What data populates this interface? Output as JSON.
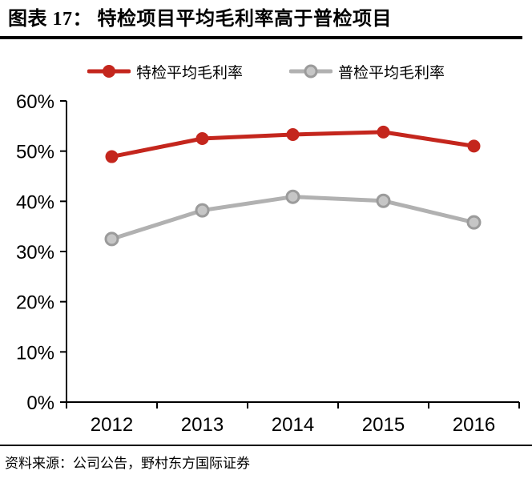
{
  "header": {
    "title": "图表 17：  特检项目平均毛利率高于普检项目"
  },
  "legend": {
    "items": [
      {
        "label": "特检平均毛利率",
        "line_color": "#c4261d",
        "marker_fill": "#c4261d",
        "marker_stroke": "#c4261d"
      },
      {
        "label": "普检平均毛利率",
        "line_color": "#b1b1b1",
        "marker_fill": "#c6c6c6",
        "marker_stroke": "#9b9b9b"
      }
    ]
  },
  "chart_data": {
    "type": "line",
    "title": "特检项目平均毛利率高于普检项目",
    "x": [
      "2012",
      "2013",
      "2014",
      "2015",
      "2016"
    ],
    "series": [
      {
        "name": "特检平均毛利率",
        "values": [
          48.9,
          52.5,
          53.3,
          53.8,
          51.0
        ],
        "color": "#c4261d",
        "marker": "filled",
        "marker_fill": "#c4261d",
        "marker_stroke": "#c4261d"
      },
      {
        "name": "普检平均毛利率",
        "values": [
          32.5,
          38.2,
          40.9,
          40.1,
          35.8
        ],
        "color": "#b1b1b1",
        "marker": "open",
        "marker_fill": "#c6c6c6",
        "marker_stroke": "#9b9b9b"
      }
    ],
    "xlabel": "",
    "ylabel": "",
    "ylim": [
      0,
      60
    ],
    "yticks": [
      {
        "value": 0,
        "label": "0%"
      },
      {
        "value": 10,
        "label": "10%"
      },
      {
        "value": 20,
        "label": "20%"
      },
      {
        "value": 30,
        "label": "30%"
      },
      {
        "value": 40,
        "label": "40%"
      },
      {
        "value": 50,
        "label": "50%"
      },
      {
        "value": 60,
        "label": "60%"
      }
    ],
    "grid": false,
    "legend_position": "top",
    "unit": "percent"
  },
  "footer": {
    "source": "资料来源：公司公告，野村东方国际证券"
  }
}
